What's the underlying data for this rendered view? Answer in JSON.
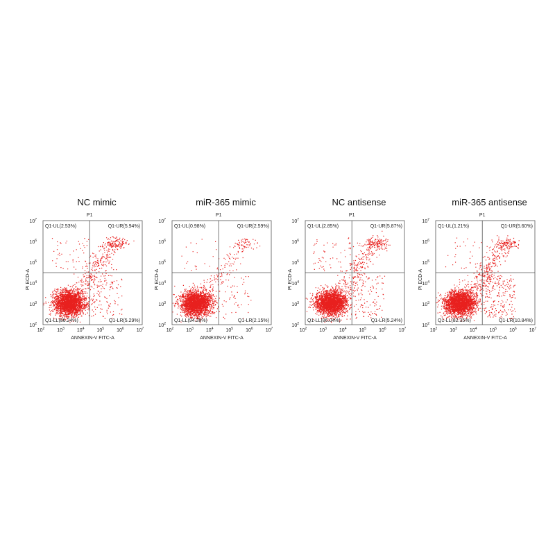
{
  "panels": [
    {
      "title": "NC mimic",
      "gate": "P1",
      "quadrants": {
        "ul": "Q1-UL(2.53%)",
        "ur": "Q1-UR(5.94%)",
        "ll": "Q1-LL(86.24%)",
        "lr": "Q1-LR(5.29%)"
      }
    },
    {
      "title": "miR-365 mimic",
      "gate": "P1",
      "quadrants": {
        "ul": "Q1-UL(0.98%)",
        "ur": "Q1-UR(2.59%)",
        "ll": "Q1-LL(94.28%)",
        "lr": "Q1-LR(2.15%)"
      }
    },
    {
      "title": "NC antisense",
      "gate": "P1",
      "quadrants": {
        "ul": "Q1-UL(2.85%)",
        "ur": "Q1-UR(5.87%)",
        "ll": "Q1-LL(86.04%)",
        "lr": "Q1-LR(5.24%)"
      }
    },
    {
      "title": "miR-365 antisense",
      "gate": "P1",
      "quadrants": {
        "ul": "Q1-UL(1.21%)",
        "ur": "Q1-UR(5.60%)",
        "ll": "Q1-LL(82.35%)",
        "lr": "Q1-LR(10.84%)"
      }
    }
  ],
  "axes": {
    "x_label": "ANNEXIN-V FITC-A",
    "y_label": "PI ECD-A",
    "ticks": [
      {
        "base": "10",
        "exp": "2"
      },
      {
        "base": "10",
        "exp": "3"
      },
      {
        "base": "10",
        "exp": "4"
      },
      {
        "base": "10",
        "exp": "5"
      },
      {
        "base": "10",
        "exp": "6"
      },
      {
        "base": "10",
        "exp": "7"
      }
    ]
  }
}
